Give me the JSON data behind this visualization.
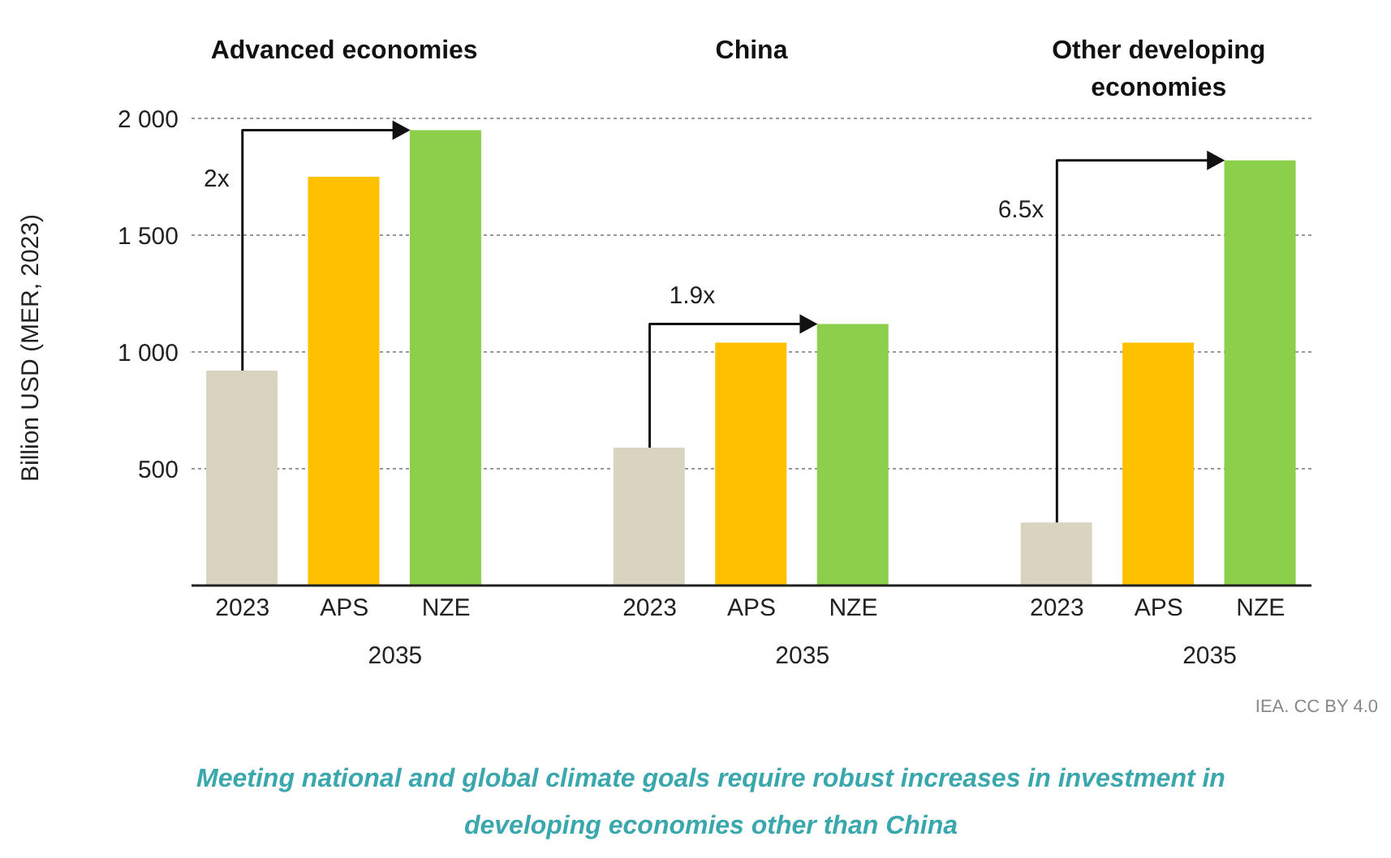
{
  "chart_data": {
    "type": "bar",
    "ylabel": "Billion USD (MER, 2023)",
    "categories": [
      "2023",
      "APS",
      "NZE",
      "2023",
      "APS",
      "NZE",
      "2023",
      "APS",
      "NZE"
    ],
    "values": [
      920,
      1750,
      1950,
      590,
      1040,
      1120,
      270,
      1040,
      1820
    ],
    "colors": [
      "#d8d4c0",
      "#ffc000",
      "#8ccf4a",
      "#d8d4c0",
      "#ffc000",
      "#8ccf4a",
      "#d8d4c0",
      "#ffc000",
      "#8ccf4a"
    ],
    "ylim": [
      0,
      2000
    ],
    "yticks": [
      500,
      {
        "value": 1000,
        "label": "1 000"
      },
      {
        "value": 1500,
        "label": "1 500"
      },
      {
        "value": 2000,
        "label": "2 000"
      }
    ],
    "grid": "y",
    "legend": false,
    "annotations": [
      "Advanced economies",
      "China",
      "Other developing economies",
      "2035",
      "2035",
      "2035",
      "2x",
      "1.9x",
      "6.5x",
      "IEA. CC BY 4.0",
      "Meeting national and global climate goals require robust increases in investment in developing economies other than China"
    ]
  }
}
